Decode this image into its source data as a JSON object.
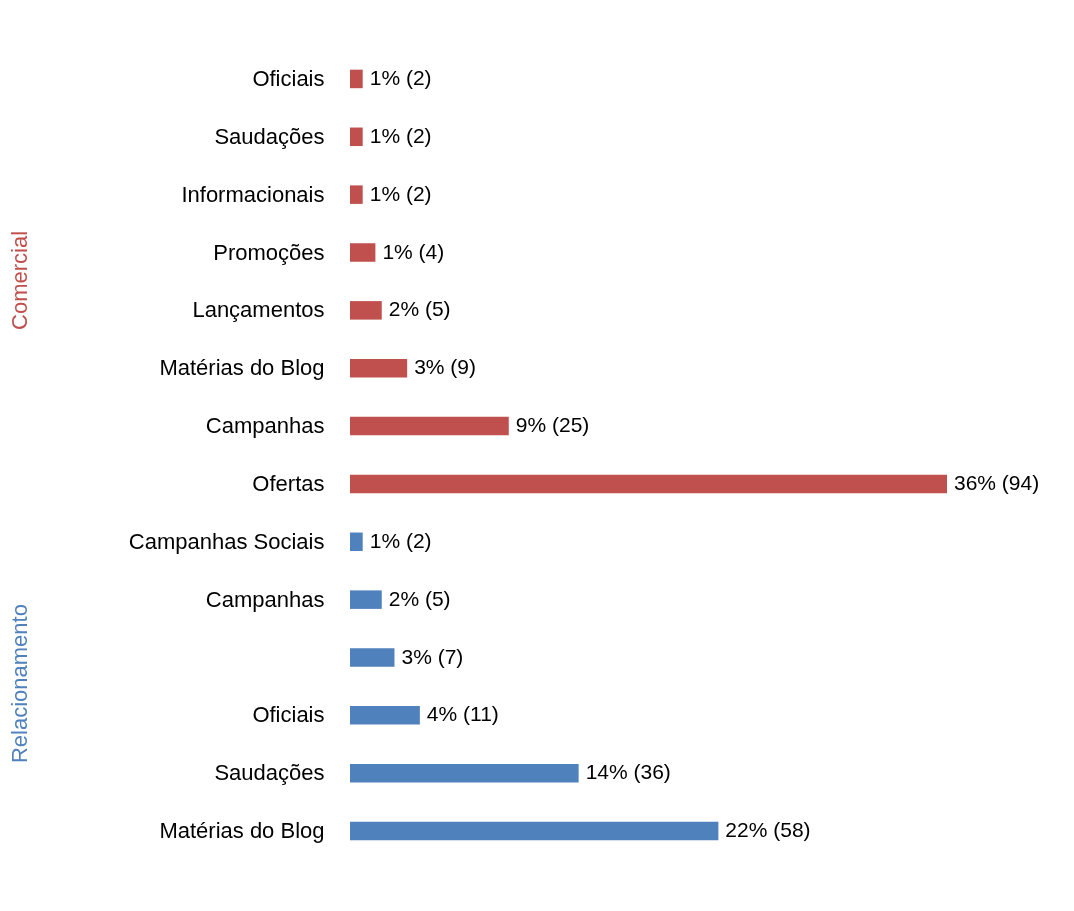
{
  "chart_data": {
    "type": "bar",
    "orientation": "horizontal",
    "legend": false,
    "categories": [
      "Oficiais",
      "Saudações",
      "Informacionais",
      "Promoções",
      "Lançamentos",
      "Matérias do Blog",
      "Campanhas",
      "Ofertas",
      "Campanhas Sociais",
      "Campanhas",
      null,
      "Oficiais",
      "Saudações",
      "Matérias do Blog"
    ],
    "series": [
      {
        "name": "Comercial",
        "color": "#c0504d",
        "values": [
          2,
          2,
          2,
          4,
          5,
          9,
          25,
          94,
          null,
          null,
          null,
          null,
          null,
          null
        ],
        "value_labels": [
          "1% (2)",
          "1% (2)",
          "1% (2)",
          "1% (4)",
          "2% (5)",
          "3% (9)",
          "9% (25)",
          "36% (94)",
          null,
          null,
          null,
          null,
          null,
          null
        ]
      },
      {
        "name": "Relacionamento",
        "color": "#4f81bd",
        "values": [
          null,
          null,
          null,
          null,
          null,
          null,
          null,
          null,
          2,
          5,
          7,
          11,
          36,
          58
        ],
        "value_labels": [
          null,
          null,
          null,
          null,
          null,
          null,
          null,
          null,
          "1% (2)",
          "2% (5)",
          "3% (7)",
          "4% (11)",
          "14% (36)",
          "22% (58)"
        ]
      }
    ]
  }
}
